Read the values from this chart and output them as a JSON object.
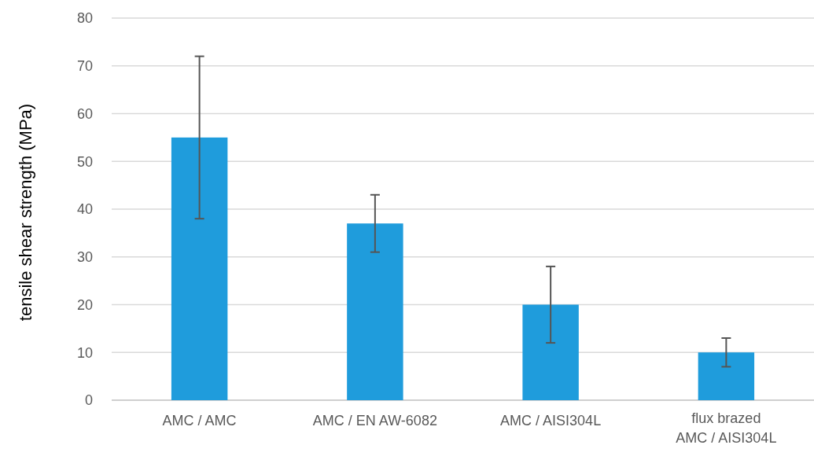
{
  "chart_data": {
    "type": "bar",
    "ylabel": "tensile shear strength (MPa)",
    "categories": [
      "AMC / AMC",
      "AMC / EN AW-6082",
      "AMC / AISI304L",
      "flux brazed\nAMC / AISI304L"
    ],
    "values": [
      55,
      37,
      20,
      10
    ],
    "errors": [
      [
        38,
        72
      ],
      [
        31,
        43
      ],
      [
        12,
        28
      ],
      [
        7,
        13
      ]
    ],
    "color": "#1f9cdc",
    "ylim": [
      0,
      80
    ],
    "yticks": [
      0,
      10,
      20,
      30,
      40,
      50,
      60,
      70,
      80
    ],
    "grid": "y"
  }
}
